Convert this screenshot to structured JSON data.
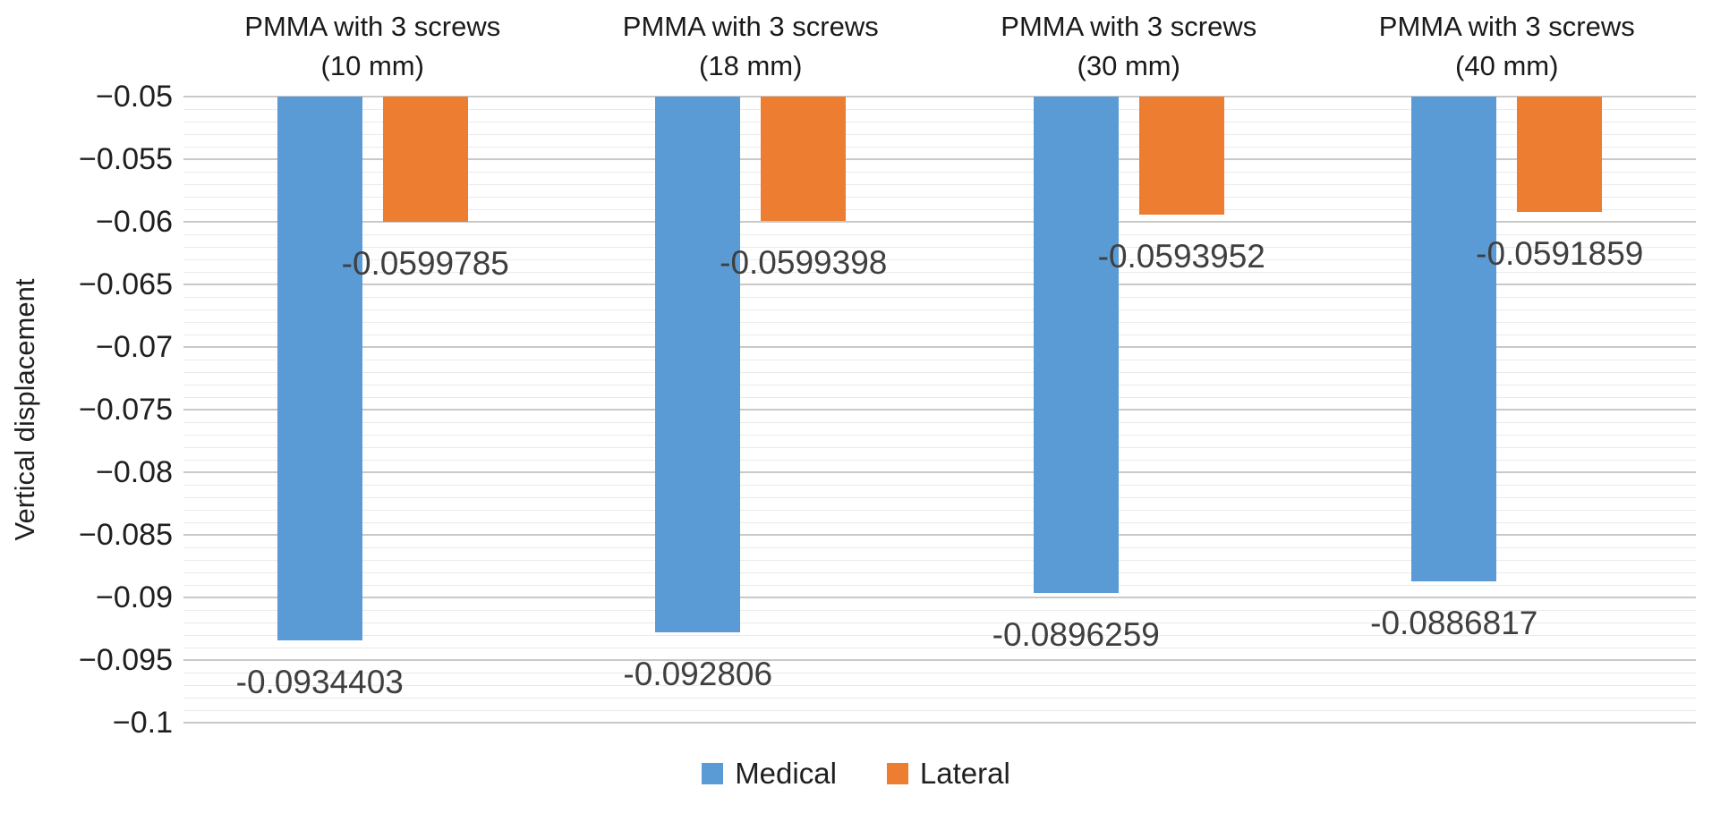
{
  "chart_data": {
    "type": "bar",
    "title": "",
    "ylabel": "Vertical displacement",
    "ylim": [
      -0.1,
      -0.05
    ],
    "y_major_step": 0.005,
    "y_minor_step": 0.001,
    "y_tick_labels": [
      "−0.05",
      "−0.055",
      "−0.06",
      "−0.065",
      "−0.07",
      "−0.075",
      "−0.08",
      "−0.085",
      "−0.09",
      "−0.095",
      "−0.1"
    ],
    "categories": [
      {
        "line1": "PMMA with 3 screws",
        "line2": "(10 mm)"
      },
      {
        "line1": "PMMA with 3 screws",
        "line2": "(18 mm)"
      },
      {
        "line1": "PMMA with 3 screws",
        "line2": "(30 mm)"
      },
      {
        "line1": "PMMA with 3 screws",
        "line2": "(40 mm)"
      }
    ],
    "series": [
      {
        "name": "Medical",
        "color": "#5B9BD5",
        "values": [
          -0.0934403,
          -0.092806,
          -0.0896259,
          -0.0886817
        ],
        "value_labels": [
          "-0.0934403",
          "-0.092806",
          "-0.0896259",
          "-0.0886817"
        ]
      },
      {
        "name": "Lateral",
        "color": "#ED7D31",
        "values": [
          -0.0599785,
          -0.0599398,
          -0.0593952,
          -0.0591859
        ],
        "value_labels": [
          "-0.0599785",
          "-0.0599398",
          "-0.0593952",
          "-0.0591859"
        ]
      }
    ],
    "legend_position": "bottom",
    "grid": true
  },
  "colors": {
    "background": "#FFFFFF",
    "major_gridline": "#C9C9C9",
    "minor_gridline": "#EAEAEA",
    "axis_text": "#1F1F1F",
    "data_label_text": "#3F3F3F"
  }
}
